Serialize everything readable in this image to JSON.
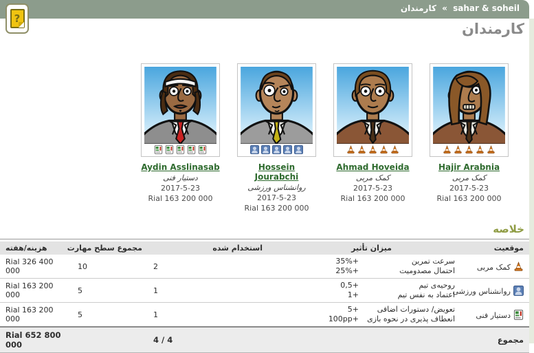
{
  "header": {
    "team": "sahar & soheil",
    "separator": "»",
    "page": "کارمندان"
  },
  "page_title": "کارمندان",
  "help_icon_glyph": "?",
  "staff": [
    {
      "name": "Aydin Asslinasab",
      "role": "دستیار فنی",
      "hired_date": "2017-5-23",
      "salary": "Rial 163 200 000",
      "skill_level": 5,
      "skill_icon": "clipboard",
      "avatar": "aydin"
    },
    {
      "name": "Hossein Jourabchi",
      "role": "روانشناس ورزشی",
      "hired_date": "2017-5-23",
      "salary": "Rial 163 200 000",
      "skill_level": 5,
      "skill_icon": "head",
      "avatar": "hossein"
    },
    {
      "name": "Ahmad Hoveida",
      "role": "کمک مربی",
      "hired_date": "2017-5-23",
      "salary": "Rial 163 200 000",
      "skill_level": 5,
      "skill_icon": "cone",
      "avatar": "ahmad"
    },
    {
      "name": "Hajir Arabnia",
      "role": "کمک مربی",
      "hired_date": "2017-5-23",
      "salary": "Rial 163 200 000",
      "skill_level": 5,
      "skill_icon": "cone",
      "avatar": "hajir"
    }
  ],
  "summary": {
    "title": "خلاصه",
    "columns": {
      "position": "موقعیت",
      "effect": "میزان تأثیر",
      "hired": "استخدام شده",
      "total_skill": "مجموع سطح مهارت",
      "cost_per_week": "هزینه/هفته"
    },
    "rows": [
      {
        "position": "کمک مربی",
        "icon": "cone",
        "effects": [
          {
            "label": "سرعت تمرین",
            "value": "+35%"
          },
          {
            "label": "احتمال مصدومیت",
            "value": "+25%"
          }
        ],
        "hired": "2",
        "total_skill": "10",
        "cost": "Rial 326 400 000"
      },
      {
        "position": "روانشناس ورزشی",
        "icon": "head",
        "effects": [
          {
            "label": "روحیه‌ی تیم",
            "value": "+0,5"
          },
          {
            "label": "اعتماد به نفس تیم",
            "value": "+1"
          }
        ],
        "hired": "1",
        "total_skill": "5",
        "cost": "Rial 163 200 000"
      },
      {
        "position": "دستیار فنی",
        "icon": "clipboard",
        "effects": [
          {
            "label": "تعویض/ دستورات اضافی",
            "value": "+5"
          },
          {
            "label": "انعطاف پذیری در نحوه بازی",
            "value": "+100pp"
          }
        ],
        "hired": "1",
        "total_skill": "5",
        "cost": "Rial 163 200 000"
      }
    ],
    "total": {
      "label": "مجموع",
      "hired": "4 / 4",
      "cost": "Rial 652 800 000"
    }
  },
  "colors": {
    "topbar": "#8c9c8c",
    "link_green": "#2f6b2f",
    "summary_title": "#8f9c44",
    "edge_strip": "#e6ebde",
    "table_header_bg": "#e3e3e3"
  }
}
